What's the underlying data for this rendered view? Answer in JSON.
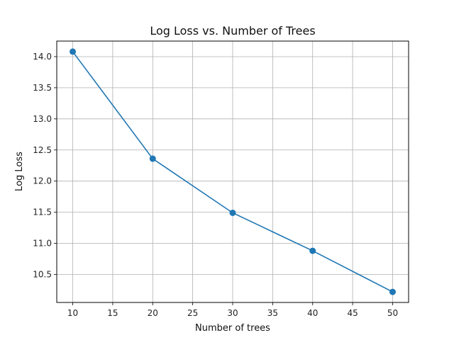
{
  "chart_data": {
    "type": "line",
    "title": "Log Loss vs. Number of Trees",
    "xlabel": "Number of trees",
    "ylabel": "Log Loss",
    "x": [
      10,
      20,
      30,
      40,
      50
    ],
    "series": [
      {
        "values": [
          14.08,
          12.36,
          11.49,
          10.88,
          10.22
        ],
        "color": "#1f77b4",
        "marker": "circle"
      }
    ],
    "xlim": [
      8,
      52
    ],
    "ylim": [
      10.05,
      14.25
    ],
    "xticks": [
      10,
      15,
      20,
      25,
      30,
      35,
      40,
      45,
      50
    ],
    "yticks": [
      10.5,
      11.0,
      11.5,
      12.0,
      12.5,
      13.0,
      13.5,
      14.0
    ],
    "xtick_labels": [
      "10",
      "15",
      "20",
      "25",
      "30",
      "35",
      "40",
      "45",
      "50"
    ],
    "ytick_labels": [
      "10.5",
      "11.0",
      "11.5",
      "12.0",
      "12.5",
      "13.0",
      "13.5",
      "14.0"
    ],
    "grid": true
  }
}
